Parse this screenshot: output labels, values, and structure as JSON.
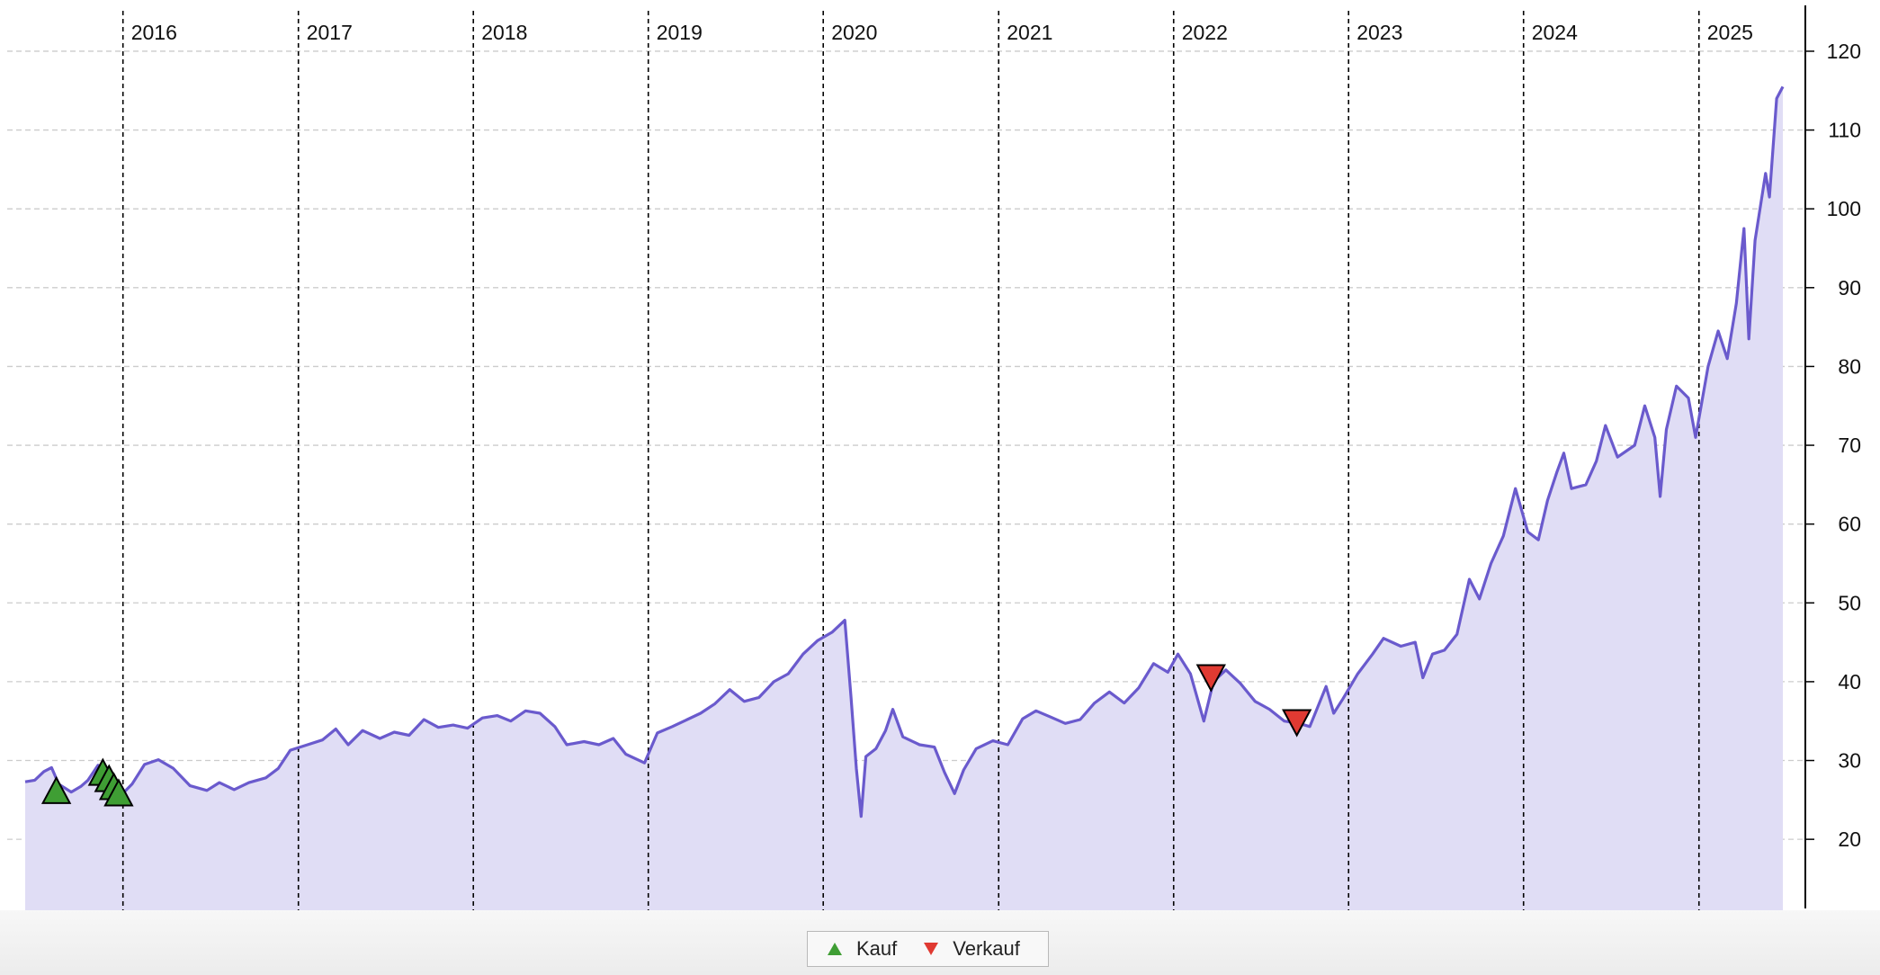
{
  "colors": {
    "line": "#6a5acd",
    "area_fill": "#e0ddf5",
    "buy_marker": "#3f9e34",
    "sell_marker": "#e03a32",
    "grid": "#cccccc",
    "year_line": "#000000"
  },
  "legend": {
    "placement": "bottom-center",
    "buy_label": "Kauf",
    "sell_label": "Verkauf",
    "buy_icon": "triangle-up-icon",
    "sell_icon": "triangle-down-icon"
  },
  "chart_data": {
    "type": "area",
    "title": "",
    "xlabel": "",
    "ylabel": "",
    "x_unit": "date",
    "xlim": [
      "2015-06-11",
      "2025-06-25"
    ],
    "ylim": [
      11,
      126.5
    ],
    "y_axis_side": "right",
    "yticks": [
      20,
      30,
      40,
      50,
      60,
      70,
      80,
      90,
      100,
      110,
      120
    ],
    "grid": {
      "horizontal": "dashed",
      "vertical_year_lines": "dashed"
    },
    "year_markers": [
      {
        "date": "2016-01-01",
        "label": "2016"
      },
      {
        "date": "2017-01-01",
        "label": "2017"
      },
      {
        "date": "2018-01-01",
        "label": "2018"
      },
      {
        "date": "2019-01-01",
        "label": "2019"
      },
      {
        "date": "2020-01-01",
        "label": "2020"
      },
      {
        "date": "2021-01-01",
        "label": "2021"
      },
      {
        "date": "2022-01-01",
        "label": "2022"
      },
      {
        "date": "2023-01-01",
        "label": "2023"
      },
      {
        "date": "2024-01-01",
        "label": "2024"
      },
      {
        "date": "2025-01-01",
        "label": "2025"
      }
    ],
    "series": [
      {
        "points": [
          [
            "2015-06-11",
            27.3
          ],
          [
            "2015-07-01",
            27.5
          ],
          [
            "2015-07-20",
            28.6
          ],
          [
            "2015-08-05",
            29.1
          ],
          [
            "2015-08-20",
            27.0
          ],
          [
            "2015-09-15",
            26.0
          ],
          [
            "2015-10-05",
            26.7
          ],
          [
            "2015-10-20",
            27.5
          ],
          [
            "2015-11-10",
            29.4
          ],
          [
            "2015-11-30",
            28.4
          ],
          [
            "2015-12-10",
            27.2
          ],
          [
            "2015-12-28",
            25.6
          ],
          [
            "2016-01-20",
            27.0
          ],
          [
            "2016-02-15",
            29.5
          ],
          [
            "2016-03-15",
            30.1
          ],
          [
            "2016-04-15",
            29.0
          ],
          [
            "2016-05-20",
            26.8
          ],
          [
            "2016-06-24",
            26.2
          ],
          [
            "2016-07-20",
            27.2
          ],
          [
            "2016-08-20",
            26.3
          ],
          [
            "2016-09-20",
            27.2
          ],
          [
            "2016-10-25",
            27.8
          ],
          [
            "2016-11-20",
            29.0
          ],
          [
            "2016-12-15",
            31.3
          ],
          [
            "2017-01-20",
            32.0
          ],
          [
            "2017-02-20",
            32.6
          ],
          [
            "2017-03-20",
            34.0
          ],
          [
            "2017-04-15",
            32.0
          ],
          [
            "2017-05-15",
            33.8
          ],
          [
            "2017-06-20",
            32.8
          ],
          [
            "2017-07-20",
            33.6
          ],
          [
            "2017-08-20",
            33.2
          ],
          [
            "2017-09-20",
            35.2
          ],
          [
            "2017-10-20",
            34.2
          ],
          [
            "2017-11-20",
            34.5
          ],
          [
            "2017-12-20",
            34.1
          ],
          [
            "2018-01-20",
            35.4
          ],
          [
            "2018-02-20",
            35.7
          ],
          [
            "2018-03-20",
            35.0
          ],
          [
            "2018-04-20",
            36.3
          ],
          [
            "2018-05-20",
            36.0
          ],
          [
            "2018-06-20",
            34.3
          ],
          [
            "2018-07-15",
            32.0
          ],
          [
            "2018-08-20",
            32.4
          ],
          [
            "2018-09-20",
            32.0
          ],
          [
            "2018-10-20",
            32.8
          ],
          [
            "2018-11-15",
            30.8
          ],
          [
            "2018-12-24",
            29.7
          ],
          [
            "2019-01-20",
            33.5
          ],
          [
            "2019-02-20",
            34.3
          ],
          [
            "2019-03-20",
            35.1
          ],
          [
            "2019-04-20",
            36.0
          ],
          [
            "2019-05-20",
            37.2
          ],
          [
            "2019-06-20",
            39.0
          ],
          [
            "2019-07-20",
            37.5
          ],
          [
            "2019-08-20",
            38.0
          ],
          [
            "2019-09-20",
            40.0
          ],
          [
            "2019-10-20",
            41.0
          ],
          [
            "2019-11-20",
            43.5
          ],
          [
            "2019-12-20",
            45.2
          ],
          [
            "2020-01-20",
            46.3
          ],
          [
            "2020-02-15",
            47.8
          ],
          [
            "2020-02-28",
            38.0
          ],
          [
            "2020-03-10",
            29.0
          ],
          [
            "2020-03-20",
            22.9
          ],
          [
            "2020-03-30",
            30.5
          ],
          [
            "2020-04-20",
            31.5
          ],
          [
            "2020-05-10",
            33.8
          ],
          [
            "2020-05-25",
            36.5
          ],
          [
            "2020-06-15",
            33.0
          ],
          [
            "2020-07-20",
            32.0
          ],
          [
            "2020-08-20",
            31.7
          ],
          [
            "2020-09-10",
            28.5
          ],
          [
            "2020-10-01",
            25.8
          ],
          [
            "2020-10-20",
            28.8
          ],
          [
            "2020-11-15",
            31.5
          ],
          [
            "2020-12-20",
            32.5
          ],
          [
            "2021-01-20",
            32.0
          ],
          [
            "2021-02-20",
            35.3
          ],
          [
            "2021-03-20",
            36.3
          ],
          [
            "2021-04-20",
            35.5
          ],
          [
            "2021-05-20",
            34.7
          ],
          [
            "2021-06-20",
            35.2
          ],
          [
            "2021-07-20",
            37.3
          ],
          [
            "2021-08-20",
            38.7
          ],
          [
            "2021-09-20",
            37.3
          ],
          [
            "2021-10-20",
            39.2
          ],
          [
            "2021-11-20",
            42.3
          ],
          [
            "2021-12-20",
            41.2
          ],
          [
            "2022-01-10",
            43.5
          ],
          [
            "2022-02-05",
            41.0
          ],
          [
            "2022-03-05",
            35.0
          ],
          [
            "2022-03-25",
            40.0
          ],
          [
            "2022-04-20",
            41.5
          ],
          [
            "2022-05-20",
            39.8
          ],
          [
            "2022-06-20",
            37.5
          ],
          [
            "2022-07-20",
            36.5
          ],
          [
            "2022-08-20",
            35.0
          ],
          [
            "2022-09-20",
            34.7
          ],
          [
            "2022-10-12",
            34.3
          ],
          [
            "2022-11-15",
            39.4
          ],
          [
            "2022-12-01",
            36.0
          ],
          [
            "2022-12-20",
            37.8
          ],
          [
            "2023-01-20",
            41.0
          ],
          [
            "2023-02-20",
            43.5
          ],
          [
            "2023-03-15",
            45.5
          ],
          [
            "2023-04-20",
            44.5
          ],
          [
            "2023-05-20",
            45.0
          ],
          [
            "2023-06-05",
            40.5
          ],
          [
            "2023-06-25",
            43.5
          ],
          [
            "2023-07-20",
            44.0
          ],
          [
            "2023-08-15",
            46.0
          ],
          [
            "2023-09-10",
            53.0
          ],
          [
            "2023-10-01",
            50.5
          ],
          [
            "2023-10-25",
            55.0
          ],
          [
            "2023-11-20",
            58.5
          ],
          [
            "2023-12-15",
            64.5
          ],
          [
            "2024-01-10",
            59.0
          ],
          [
            "2024-02-01",
            58.0
          ],
          [
            "2024-02-20",
            63.0
          ],
          [
            "2024-03-10",
            66.5
          ],
          [
            "2024-03-25",
            69.0
          ],
          [
            "2024-04-10",
            64.5
          ],
          [
            "2024-05-10",
            65.0
          ],
          [
            "2024-06-01",
            68.0
          ],
          [
            "2024-06-20",
            72.5
          ],
          [
            "2024-07-15",
            68.5
          ],
          [
            "2024-08-20",
            70.0
          ],
          [
            "2024-09-10",
            75.0
          ],
          [
            "2024-10-01",
            71.0
          ],
          [
            "2024-10-12",
            63.5
          ],
          [
            "2024-10-25",
            72.0
          ],
          [
            "2024-11-15",
            77.5
          ],
          [
            "2024-12-10",
            76.0
          ],
          [
            "2024-12-25",
            71.0
          ],
          [
            "2025-01-20",
            80.0
          ],
          [
            "2025-02-10",
            84.5
          ],
          [
            "2025-03-01",
            81.0
          ],
          [
            "2025-03-20",
            88.0
          ],
          [
            "2025-04-05",
            97.5
          ],
          [
            "2025-04-15",
            83.5
          ],
          [
            "2025-04-28",
            96.0
          ],
          [
            "2025-05-20",
            104.5
          ],
          [
            "2025-05-28",
            101.5
          ],
          [
            "2025-06-12",
            114.0
          ],
          [
            "2025-06-25",
            115.5
          ]
        ]
      }
    ],
    "buy_markers": [
      {
        "date": "2015-08-15",
        "price": 26.2
      },
      {
        "date": "2015-11-20",
        "price": 28.5
      },
      {
        "date": "2015-12-03",
        "price": 27.7
      },
      {
        "date": "2015-12-13",
        "price": 26.7
      },
      {
        "date": "2015-12-23",
        "price": 25.9
      }
    ],
    "sell_markers": [
      {
        "date": "2022-03-20",
        "price": 40.5
      },
      {
        "date": "2022-09-15",
        "price": 34.8
      }
    ]
  }
}
